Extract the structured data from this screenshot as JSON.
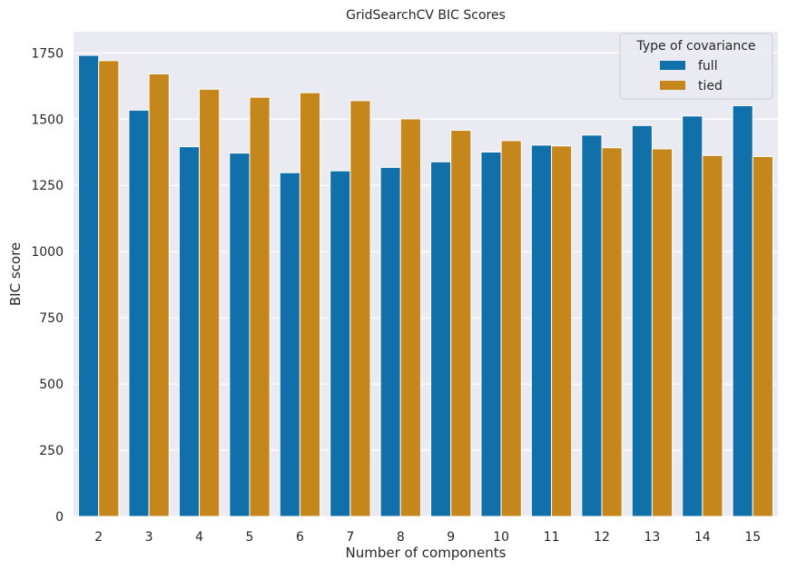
{
  "chart_data": {
    "type": "bar",
    "title": "GridSearchCV BIC Scores",
    "xlabel": "Number of components",
    "ylabel": "BIC score",
    "categories": [
      "2",
      "3",
      "4",
      "5",
      "6",
      "7",
      "8",
      "9",
      "10",
      "11",
      "12",
      "13",
      "14",
      "15"
    ],
    "series": [
      {
        "name": "full",
        "color": "#1170aa",
        "values": [
          1741,
          1534,
          1396,
          1372,
          1298,
          1305,
          1318,
          1339,
          1376,
          1402,
          1440,
          1476,
          1512,
          1551
        ]
      },
      {
        "name": "tied",
        "color": "#c5861c",
        "values": [
          1721,
          1671,
          1613,
          1583,
          1600,
          1570,
          1501,
          1458,
          1419,
          1399,
          1392,
          1388,
          1363,
          1359
        ]
      }
    ],
    "ylim": [
      0,
      1830
    ],
    "yticks": [
      0,
      250,
      500,
      750,
      1000,
      1250,
      1500,
      1750
    ],
    "grid": true,
    "legend": {
      "title": "Type of covariance",
      "placement": "top-right"
    },
    "background_color": "#eaeaf2"
  }
}
